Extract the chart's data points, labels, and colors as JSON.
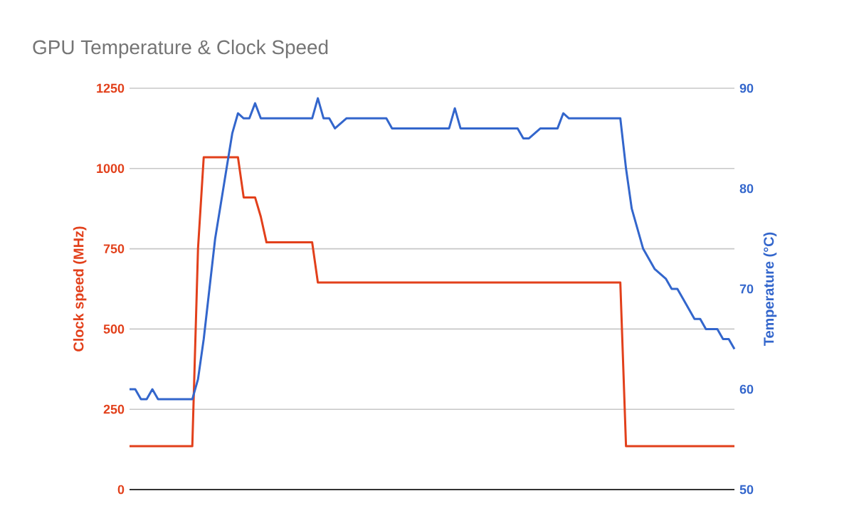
{
  "chart_data": {
    "type": "line",
    "title": "GPU Temperature & Clock Speed",
    "ylabel": "Clock speed (MHz)",
    "y2label": "Temperature (°C)",
    "categories": [
      null,
      null,
      null,
      null,
      null,
      null,
      null,
      null,
      null,
      null,
      null,
      null,
      null,
      null,
      null,
      null,
      null,
      null,
      null,
      null,
      null,
      null,
      null,
      null,
      null,
      null,
      null,
      null,
      null,
      null,
      null,
      null,
      null,
      null,
      null,
      null,
      null,
      null,
      null,
      null,
      null,
      null,
      null,
      null,
      null,
      null,
      null,
      null,
      null,
      null,
      null,
      null,
      null,
      null,
      null,
      null,
      null,
      null,
      null,
      null,
      null,
      null,
      null,
      null,
      null,
      null,
      null,
      null,
      null,
      null,
      null,
      null,
      null,
      null,
      null,
      null,
      null,
      null,
      null,
      null,
      null,
      null,
      null,
      null,
      null,
      null,
      null,
      null,
      null,
      null,
      null,
      null,
      null,
      null,
      null,
      null,
      null,
      null,
      null,
      null,
      null,
      null,
      null,
      null,
      null,
      null,
      null
    ],
    "series": [
      {
        "color": "#e2401b",
        "axis": "y",
        "values": [
          135,
          135,
          135,
          135,
          135,
          135,
          135,
          135,
          135,
          135,
          135,
          135,
          750,
          1035,
          1035,
          1035,
          1035,
          1035,
          1035,
          1035,
          910,
          910,
          910,
          850,
          770,
          770,
          770,
          770,
          770,
          770,
          770,
          770,
          770,
          645,
          645,
          645,
          645,
          645,
          645,
          645,
          645,
          645,
          645,
          645,
          645,
          645,
          645,
          645,
          645,
          645,
          645,
          645,
          645,
          645,
          645,
          645,
          645,
          645,
          645,
          645,
          645,
          645,
          645,
          645,
          645,
          645,
          645,
          645,
          645,
          645,
          645,
          645,
          645,
          645,
          645,
          645,
          645,
          645,
          645,
          645,
          645,
          645,
          645,
          645,
          645,
          645,
          645,
          135,
          135,
          135,
          135,
          135,
          135,
          135,
          135,
          135,
          135,
          135,
          135,
          135,
          135,
          135,
          135,
          135,
          135,
          135,
          135
        ]
      },
      {
        "color": "#3366cc",
        "axis": "y2",
        "values": [
          60,
          60,
          59,
          59,
          60,
          59,
          59,
          59,
          59,
          59,
          59,
          59,
          61,
          65,
          70,
          75,
          78.5,
          82,
          85.5,
          87.5,
          87,
          87,
          88.5,
          87,
          87,
          87,
          87,
          87,
          87,
          87,
          87,
          87,
          87,
          89,
          87,
          87,
          86,
          86.5,
          87,
          87,
          87,
          87,
          87,
          87,
          87,
          87,
          86,
          86,
          86,
          86,
          86,
          86,
          86,
          86,
          86,
          86,
          86,
          88,
          86,
          86,
          86,
          86,
          86,
          86,
          86,
          86,
          86,
          86,
          86,
          85,
          85,
          85.5,
          86,
          86,
          86,
          86,
          87.5,
          87,
          87,
          87,
          87,
          87,
          87,
          87,
          87,
          87,
          87,
          82,
          78,
          76,
          74,
          73,
          72,
          71.5,
          71,
          70,
          70,
          69,
          68,
          67,
          67,
          66,
          66,
          66,
          65,
          65,
          64
        ]
      }
    ],
    "ylim": [
      0,
      1250
    ],
    "yticks": [
      0,
      250,
      500,
      750,
      1000,
      1250
    ],
    "y2lim": [
      50,
      90
    ],
    "y2ticks": [
      50,
      60,
      70,
      80,
      90
    ],
    "grid": "y"
  }
}
